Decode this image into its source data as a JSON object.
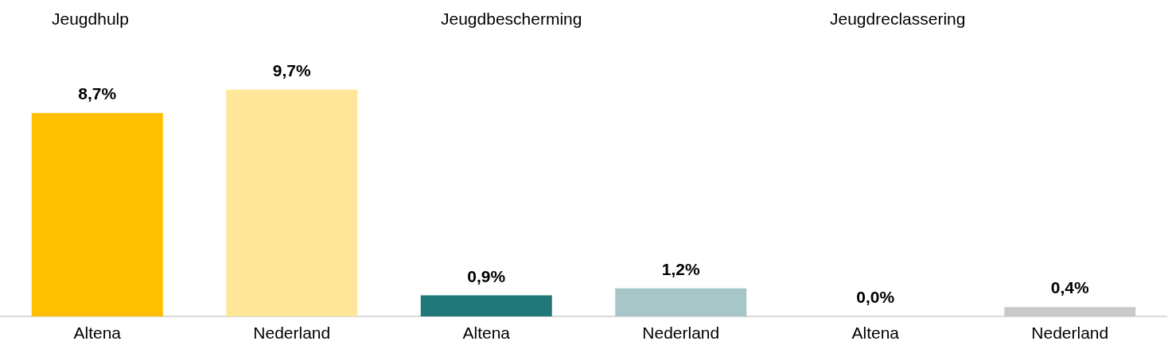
{
  "chart_data": [
    {
      "type": "bar",
      "title": "Jeugdhulp",
      "categories": [
        "Altena",
        "Nederland"
      ],
      "values": [
        8.7,
        9.7
      ],
      "colors": [
        "#ffc000",
        "#ffe699"
      ],
      "value_labels": [
        "8,7%",
        "9,7%"
      ]
    },
    {
      "type": "bar",
      "title": "Jeugdbescherming",
      "categories": [
        "Altena",
        "Nederland"
      ],
      "values": [
        0.9,
        1.2
      ],
      "colors": [
        "#21787a",
        "#a7c6c7"
      ],
      "value_labels": [
        "0,9%",
        "1,2%"
      ]
    },
    {
      "type": "bar",
      "title": "Jeugdreclassering",
      "categories": [
        "Altena",
        "Nederland"
      ],
      "values": [
        0.0,
        0.4
      ],
      "colors": [
        "#7f7f7f",
        "#c9c9c9"
      ],
      "value_labels": [
        "0,0%",
        "0,4%"
      ]
    }
  ]
}
